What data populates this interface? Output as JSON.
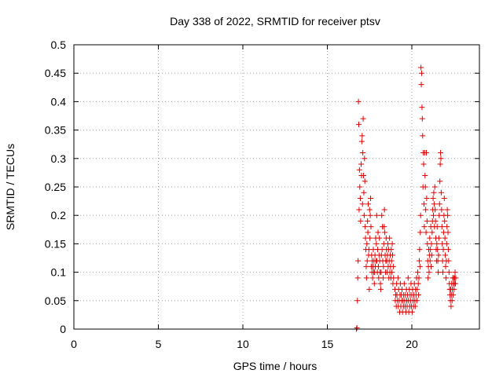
{
  "chart_data": {
    "type": "scatter",
    "title": "Day 338 of 2022, SRMTID for receiver ptsv",
    "xlabel": "GPS time / hours",
    "ylabel": "SRMTID / TECUs",
    "xlim": [
      0,
      24
    ],
    "ylim": [
      0,
      0.5
    ],
    "x_ticks": [
      "0",
      "5",
      "10",
      "15",
      "20"
    ],
    "y_ticks": [
      "0",
      "0.05",
      "0.1",
      "0.15",
      "0.2",
      "0.25",
      "0.3",
      "0.35",
      "0.4",
      "0.45",
      "0.5"
    ],
    "grid": true,
    "marker": "+",
    "color": "#e00000",
    "series": [
      {
        "points": [
          [
            16.72,
            0.0
          ],
          [
            16.75,
            0.002
          ],
          [
            16.78,
            0.05
          ],
          [
            16.8,
            0.09
          ],
          [
            16.82,
            0.12
          ],
          [
            16.84,
            0.4
          ],
          [
            16.86,
            0.36
          ],
          [
            16.88,
            0.21
          ],
          [
            16.9,
            0.28
          ],
          [
            16.92,
            0.25
          ],
          [
            16.95,
            0.23
          ],
          [
            16.97,
            0.19
          ],
          [
            17.0,
            0.29
          ],
          [
            17.02,
            0.27
          ],
          [
            17.04,
            0.33
          ],
          [
            17.06,
            0.34
          ],
          [
            17.08,
            0.22
          ],
          [
            17.1,
            0.31
          ],
          [
            17.12,
            0.37
          ],
          [
            17.14,
            0.27
          ],
          [
            17.16,
            0.24
          ],
          [
            17.18,
            0.2
          ],
          [
            17.2,
            0.3
          ],
          [
            17.22,
            0.26
          ],
          [
            17.24,
            0.18
          ],
          [
            17.26,
            0.16
          ],
          [
            17.28,
            0.14
          ],
          [
            17.3,
            0.11
          ],
          [
            17.32,
            0.09
          ],
          [
            17.34,
            0.15
          ],
          [
            17.36,
            0.12
          ],
          [
            17.38,
            0.19
          ],
          [
            17.4,
            0.17
          ],
          [
            17.42,
            0.22
          ],
          [
            17.44,
            0.13
          ],
          [
            17.46,
            0.14
          ],
          [
            17.48,
            0.07
          ],
          [
            17.5,
            0.21
          ],
          [
            17.52,
            0.16
          ],
          [
            17.54,
            0.2
          ],
          [
            17.56,
            0.23
          ],
          [
            17.58,
            0.18
          ],
          [
            17.6,
            0.11
          ],
          [
            17.62,
            0.13
          ],
          [
            17.64,
            0.1
          ],
          [
            17.66,
            0.12
          ],
          [
            17.68,
            0.09
          ],
          [
            17.7,
            0.11
          ],
          [
            17.72,
            0.14
          ],
          [
            17.74,
            0.1
          ],
          [
            17.76,
            0.12
          ],
          [
            17.78,
            0.08
          ],
          [
            17.8,
            0.1
          ],
          [
            17.82,
            0.13
          ],
          [
            17.84,
            0.11
          ],
          [
            17.86,
            0.16
          ],
          [
            17.88,
            0.12
          ],
          [
            17.9,
            0.15
          ],
          [
            17.92,
            0.2
          ],
          [
            17.94,
            0.12
          ],
          [
            17.96,
            0.1
          ],
          [
            17.98,
            0.14
          ],
          [
            18.0,
            0.17
          ],
          [
            18.02,
            0.11
          ],
          [
            18.04,
            0.09
          ],
          [
            18.06,
            0.13
          ],
          [
            18.08,
            0.16
          ],
          [
            18.1,
            0.12
          ],
          [
            18.12,
            0.1
          ],
          [
            18.14,
            0.08
          ],
          [
            18.16,
            0.07
          ],
          [
            18.18,
            0.1
          ],
          [
            18.2,
            0.13
          ],
          [
            18.22,
            0.2
          ],
          [
            18.24,
            0.14
          ],
          [
            18.26,
            0.18
          ],
          [
            18.28,
            0.12
          ],
          [
            18.3,
            0.09
          ],
          [
            18.32,
            0.11
          ],
          [
            18.34,
            0.15
          ],
          [
            18.36,
            0.18
          ],
          [
            18.38,
            0.21
          ],
          [
            18.4,
            0.17
          ],
          [
            18.42,
            0.13
          ],
          [
            18.44,
            0.1
          ],
          [
            18.46,
            0.12
          ],
          [
            18.48,
            0.16
          ],
          [
            18.5,
            0.14
          ],
          [
            18.52,
            0.12
          ],
          [
            18.54,
            0.1
          ],
          [
            18.56,
            0.13
          ],
          [
            18.58,
            0.15
          ],
          [
            18.6,
            0.11
          ],
          [
            18.62,
            0.14
          ],
          [
            18.64,
            0.09
          ],
          [
            18.66,
            0.12
          ],
          [
            18.68,
            0.16
          ],
          [
            18.7,
            0.1
          ],
          [
            18.72,
            0.13
          ],
          [
            18.74,
            0.11
          ],
          [
            18.76,
            0.09
          ],
          [
            18.78,
            0.14
          ],
          [
            18.8,
            0.12
          ],
          [
            18.82,
            0.1
          ],
          [
            18.84,
            0.15
          ],
          [
            18.86,
            0.13
          ],
          [
            18.88,
            0.08
          ],
          [
            18.9,
            0.11
          ],
          [
            18.92,
            0.09
          ],
          [
            19.0,
            0.07
          ],
          [
            19.02,
            0.05
          ],
          [
            19.05,
            0.06
          ],
          [
            19.08,
            0.04
          ],
          [
            19.1,
            0.08
          ],
          [
            19.12,
            0.06
          ],
          [
            19.15,
            0.05
          ],
          [
            19.18,
            0.09
          ],
          [
            19.2,
            0.04
          ],
          [
            19.22,
            0.07
          ],
          [
            19.25,
            0.05
          ],
          [
            19.28,
            0.03
          ],
          [
            19.3,
            0.06
          ],
          [
            19.32,
            0.08
          ],
          [
            19.35,
            0.04
          ],
          [
            19.38,
            0.06
          ],
          [
            19.4,
            0.05
          ],
          [
            19.42,
            0.07
          ],
          [
            19.45,
            0.03
          ],
          [
            19.48,
            0.05
          ],
          [
            19.5,
            0.04
          ],
          [
            19.52,
            0.06
          ],
          [
            19.55,
            0.08
          ],
          [
            19.58,
            0.05
          ],
          [
            19.6,
            0.04
          ],
          [
            19.62,
            0.06
          ],
          [
            19.65,
            0.03
          ],
          [
            19.68,
            0.07
          ],
          [
            19.7,
            0.05
          ],
          [
            19.72,
            0.04
          ],
          [
            19.75,
            0.06
          ],
          [
            19.78,
            0.09
          ],
          [
            19.8,
            0.05
          ],
          [
            19.82,
            0.03
          ],
          [
            19.85,
            0.07
          ],
          [
            19.88,
            0.04
          ],
          [
            19.9,
            0.06
          ],
          [
            19.92,
            0.05
          ],
          [
            19.95,
            0.08
          ],
          [
            19.98,
            0.04
          ],
          [
            20.0,
            0.06
          ],
          [
            20.02,
            0.03
          ],
          [
            20.05,
            0.07
          ],
          [
            20.08,
            0.05
          ],
          [
            20.1,
            0.04
          ],
          [
            20.12,
            0.06
          ],
          [
            20.15,
            0.08
          ],
          [
            20.18,
            0.05
          ],
          [
            20.2,
            0.04
          ],
          [
            20.22,
            0.07
          ],
          [
            20.25,
            0.06
          ],
          [
            20.28,
            0.09
          ],
          [
            20.3,
            0.05
          ],
          [
            20.32,
            0.07
          ],
          [
            20.35,
            0.1
          ],
          [
            20.38,
            0.08
          ],
          [
            20.4,
            0.06
          ],
          [
            20.42,
            0.09
          ],
          [
            20.44,
            0.12
          ],
          [
            20.46,
            0.14
          ],
          [
            20.48,
            0.11
          ],
          [
            20.5,
            0.17
          ],
          [
            20.52,
            0.2
          ],
          [
            20.54,
            0.46
          ],
          [
            20.56,
            0.43
          ],
          [
            20.58,
            0.45
          ],
          [
            20.6,
            0.39
          ],
          [
            20.62,
            0.37
          ],
          [
            20.64,
            0.34
          ],
          [
            20.66,
            0.25
          ],
          [
            20.68,
            0.31
          ],
          [
            20.7,
            0.29
          ],
          [
            20.72,
            0.22
          ],
          [
            20.74,
            0.18
          ],
          [
            20.76,
            0.31
          ],
          [
            20.78,
            0.27
          ],
          [
            20.8,
            0.25
          ],
          [
            20.82,
            0.21
          ],
          [
            20.84,
            0.17
          ],
          [
            20.86,
            0.31
          ],
          [
            20.88,
            0.23
          ],
          [
            20.9,
            0.19
          ],
          [
            20.92,
            0.15
          ],
          [
            20.94,
            0.12
          ],
          [
            20.96,
            0.09
          ],
          [
            20.98,
            0.11
          ],
          [
            21.0,
            0.14
          ],
          [
            21.02,
            0.1
          ],
          [
            21.04,
            0.13
          ],
          [
            21.06,
            0.16
          ],
          [
            21.08,
            0.12
          ],
          [
            21.1,
            0.14
          ],
          [
            21.12,
            0.18
          ],
          [
            21.14,
            0.11
          ],
          [
            21.16,
            0.15
          ],
          [
            21.18,
            0.13
          ],
          [
            21.2,
            0.17
          ],
          [
            21.22,
            0.19
          ],
          [
            21.24,
            0.21
          ],
          [
            21.26,
            0.23
          ],
          [
            21.28,
            0.2
          ],
          [
            21.3,
            0.24
          ],
          [
            21.32,
            0.22
          ],
          [
            21.34,
            0.18
          ],
          [
            21.36,
            0.25
          ],
          [
            21.38,
            0.21
          ],
          [
            21.4,
            0.19
          ],
          [
            21.42,
            0.16
          ],
          [
            21.44,
            0.14
          ],
          [
            21.46,
            0.12
          ],
          [
            21.48,
            0.15
          ],
          [
            21.5,
            0.18
          ],
          [
            21.52,
            0.14
          ],
          [
            21.54,
            0.12
          ],
          [
            21.56,
            0.1
          ],
          [
            21.58,
            0.13
          ],
          [
            21.6,
            0.16
          ],
          [
            21.62,
            0.2
          ],
          [
            21.64,
            0.22
          ],
          [
            21.66,
            0.26
          ],
          [
            21.68,
            0.29
          ],
          [
            21.7,
            0.31
          ],
          [
            21.72,
            0.3
          ],
          [
            21.74,
            0.24
          ],
          [
            21.76,
            0.21
          ],
          [
            21.78,
            0.18
          ],
          [
            21.8,
            0.15
          ],
          [
            21.82,
            0.12
          ],
          [
            21.84,
            0.1
          ],
          [
            21.86,
            0.14
          ],
          [
            21.88,
            0.17
          ],
          [
            21.9,
            0.2
          ],
          [
            21.92,
            0.23
          ],
          [
            21.94,
            0.19
          ],
          [
            21.96,
            0.16
          ],
          [
            21.98,
            0.13
          ],
          [
            22.0,
            0.11
          ],
          [
            22.02,
            0.09
          ],
          [
            22.04,
            0.12
          ],
          [
            22.06,
            0.15
          ],
          [
            22.08,
            0.18
          ],
          [
            22.1,
            0.21
          ],
          [
            22.12,
            0.2
          ],
          [
            22.14,
            0.17
          ],
          [
            22.16,
            0.14
          ],
          [
            22.18,
            0.12
          ],
          [
            22.2,
            0.1
          ],
          [
            22.22,
            0.08
          ],
          [
            22.24,
            0.07
          ],
          [
            22.26,
            0.06
          ],
          [
            22.28,
            0.05
          ],
          [
            22.3,
            0.07
          ],
          [
            22.32,
            0.04
          ],
          [
            22.34,
            0.06
          ],
          [
            22.36,
            0.08
          ],
          [
            22.38,
            0.05
          ],
          [
            22.4,
            0.07
          ],
          [
            22.42,
            0.09
          ],
          [
            22.44,
            0.06
          ],
          [
            22.46,
            0.08
          ],
          [
            22.48,
            0.09
          ],
          [
            22.5,
            0.07
          ],
          [
            22.52,
            0.08
          ],
          [
            22.54,
            0.09
          ],
          [
            22.56,
            0.1
          ],
          [
            22.58,
            0.08
          ],
          [
            22.6,
            0.09
          ]
        ]
      }
    ]
  }
}
